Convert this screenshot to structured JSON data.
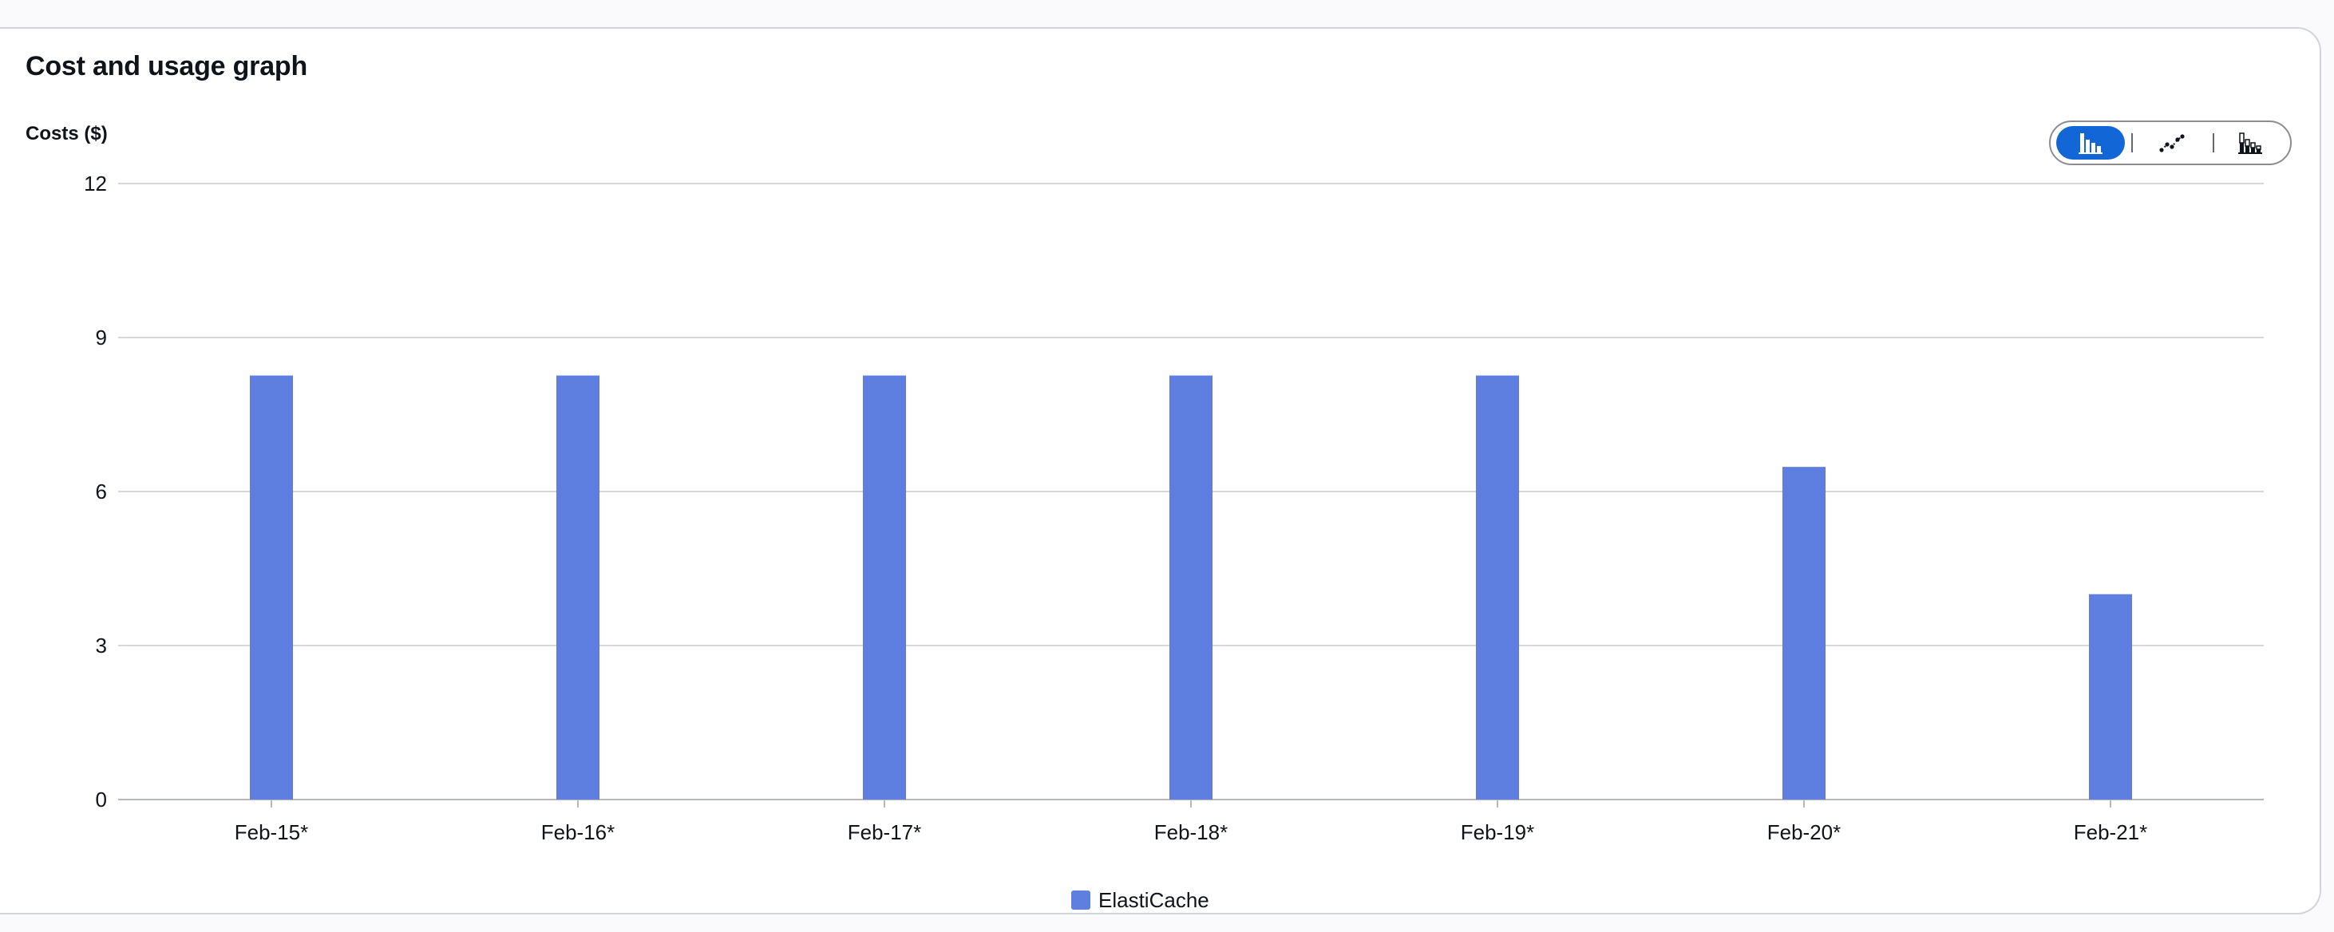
{
  "card": {
    "title": "Cost and usage graph"
  },
  "chart_controls": {
    "options": [
      {
        "icon": "bar-chart-icon",
        "active": true
      },
      {
        "icon": "line-chart-icon",
        "active": false
      },
      {
        "icon": "stacked-bar-chart-icon",
        "active": false
      }
    ]
  },
  "chart_data": {
    "type": "bar",
    "ylabel": "Costs ($)",
    "xlabel": "",
    "categories": [
      "Feb-15*",
      "Feb-16*",
      "Feb-17*",
      "Feb-18*",
      "Feb-19*",
      "Feb-20*",
      "Feb-21*"
    ],
    "series": [
      {
        "name": "ElastiCache",
        "values": [
          8.26,
          8.26,
          8.26,
          8.26,
          8.26,
          6.48,
          4.0
        ],
        "color": "#5f7fe0"
      }
    ],
    "ylim": [
      0,
      12
    ],
    "yticks": [
      0,
      3,
      6,
      9,
      12
    ],
    "grid": true,
    "legend": "bottom-center"
  },
  "colors": {
    "accent": "#1366d6",
    "bar": "#5f7fe0",
    "grid": "#d5d7db"
  }
}
